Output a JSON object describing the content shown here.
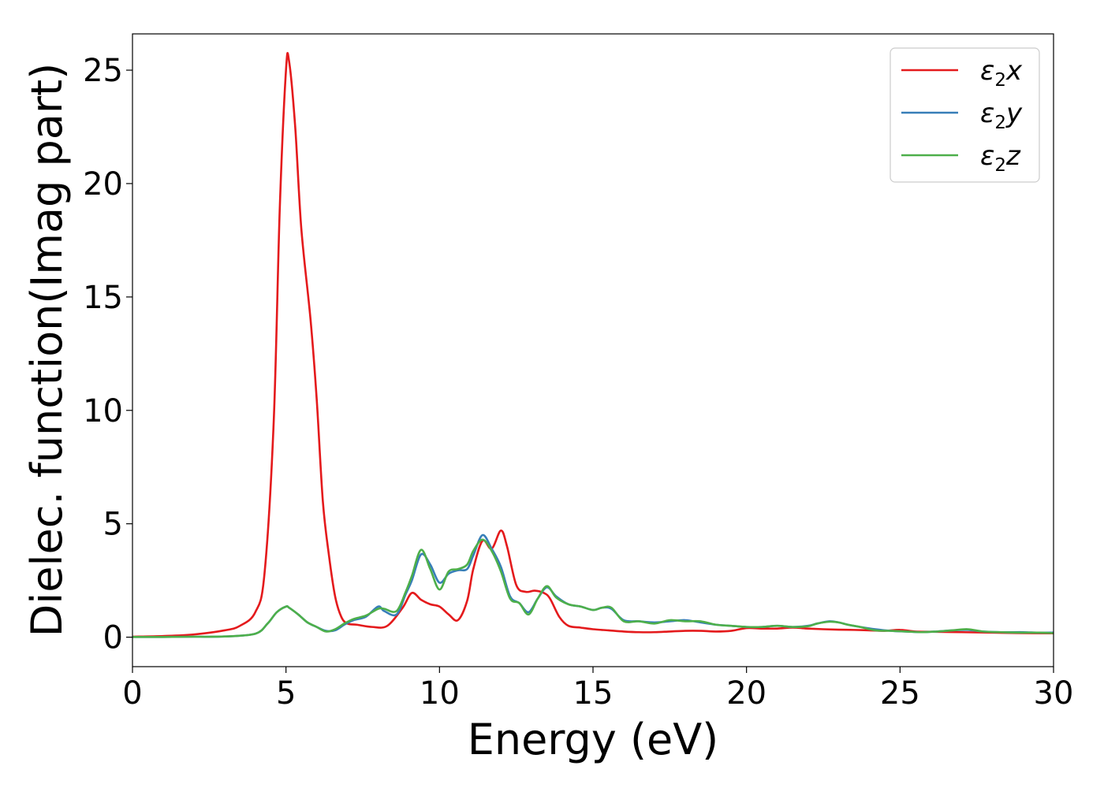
{
  "chart_data": {
    "type": "line",
    "title": "",
    "xlabel": "Energy (eV)",
    "ylabel": "Dielec. function(Imag part)",
    "xlim": [
      0,
      30
    ],
    "ylim": [
      -1.3,
      26.6
    ],
    "xticks": [
      0,
      5,
      10,
      15,
      20,
      25,
      30
    ],
    "yticks": [
      0,
      5,
      10,
      15,
      20,
      25
    ],
    "grid": false,
    "legend_position": "top-right",
    "series": [
      {
        "name": "ε₂x",
        "legend_base": "ε",
        "legend_sub": "2",
        "legend_var": "x",
        "color": "#e41a1c",
        "x": [
          0,
          1,
          2,
          3,
          3.5,
          4,
          4.3,
          4.6,
          4.8,
          5.0,
          5.1,
          5.3,
          5.5,
          5.8,
          6.0,
          6.2,
          6.4,
          6.6,
          6.8,
          7.0,
          7.3,
          7.8,
          8.3,
          8.8,
          9.1,
          9.4,
          9.7,
          10.0,
          10.3,
          10.6,
          10.9,
          11.1,
          11.4,
          11.7,
          12.0,
          12.2,
          12.5,
          12.8,
          13.1,
          13.4,
          13.6,
          13.9,
          14.2,
          14.6,
          15.0,
          15.5,
          16.0,
          16.5,
          17.0,
          17.5,
          18.0,
          18.5,
          19.0,
          19.5,
          20.0,
          20.5,
          21.0,
          21.5,
          22.0,
          22.5,
          23.0,
          23.5,
          24.0,
          24.5,
          25.0,
          25.5,
          26.0,
          27.0,
          28.0,
          29.0,
          30.0
        ],
        "values": [
          0.02,
          0.05,
          0.12,
          0.3,
          0.5,
          1.1,
          2.8,
          9.5,
          19.0,
          25.0,
          25.4,
          22.5,
          18.0,
          14.0,
          10.5,
          6.0,
          3.6,
          1.8,
          0.9,
          0.6,
          0.55,
          0.45,
          0.5,
          1.3,
          1.95,
          1.65,
          1.45,
          1.35,
          1.0,
          0.75,
          1.6,
          3.0,
          4.25,
          3.9,
          4.7,
          4.0,
          2.3,
          2.0,
          2.05,
          1.95,
          1.7,
          0.9,
          0.5,
          0.42,
          0.35,
          0.3,
          0.25,
          0.22,
          0.22,
          0.25,
          0.28,
          0.28,
          0.25,
          0.28,
          0.4,
          0.38,
          0.38,
          0.42,
          0.38,
          0.35,
          0.33,
          0.32,
          0.3,
          0.28,
          0.32,
          0.25,
          0.24,
          0.22,
          0.2,
          0.18,
          0.17
        ]
      },
      {
        "name": "ε₂y",
        "legend_base": "ε",
        "legend_sub": "2",
        "legend_var": "y",
        "color": "#377eb8",
        "x": [
          0,
          1,
          2,
          3,
          4,
          4.4,
          4.7,
          5.0,
          5.1,
          5.4,
          5.7,
          6.0,
          6.3,
          6.6,
          6.9,
          7.2,
          7.6,
          8.0,
          8.2,
          8.6,
          8.9,
          9.1,
          9.4,
          9.7,
          10.0,
          10.3,
          10.6,
          10.9,
          11.1,
          11.4,
          11.7,
          12.0,
          12.3,
          12.6,
          12.9,
          13.2,
          13.5,
          13.8,
          14.2,
          14.6,
          15.0,
          15.3,
          15.6,
          16.0,
          16.5,
          17.0,
          17.5,
          18.0,
          18.5,
          19.0,
          19.5,
          20.0,
          20.5,
          21.0,
          21.5,
          22.0,
          22.3,
          22.7,
          23.0,
          23.3,
          23.7,
          24.2,
          24.7,
          25.2,
          25.7,
          26.2,
          26.7,
          27.2,
          27.7,
          28.3,
          29.0,
          29.5,
          30.0
        ],
        "values": [
          0.01,
          0.01,
          0.02,
          0.03,
          0.15,
          0.6,
          1.1,
          1.35,
          1.3,
          1.0,
          0.65,
          0.45,
          0.28,
          0.3,
          0.55,
          0.75,
          0.9,
          1.35,
          1.15,
          1.0,
          1.9,
          2.5,
          3.65,
          3.2,
          2.4,
          2.8,
          2.95,
          3.0,
          3.6,
          4.5,
          3.9,
          3.1,
          1.8,
          1.5,
          1.1,
          1.7,
          2.2,
          1.8,
          1.45,
          1.35,
          1.2,
          1.3,
          1.25,
          0.75,
          0.7,
          0.65,
          0.7,
          0.75,
          0.65,
          0.55,
          0.5,
          0.45,
          0.45,
          0.5,
          0.45,
          0.5,
          0.6,
          0.7,
          0.65,
          0.55,
          0.45,
          0.35,
          0.28,
          0.25,
          0.22,
          0.25,
          0.3,
          0.32,
          0.25,
          0.22,
          0.22,
          0.2,
          0.2
        ]
      },
      {
        "name": "ε₂z",
        "legend_base": "ε",
        "legend_sub": "2",
        "legend_var": "z",
        "color": "#4daf4a",
        "x": [
          0,
          1,
          2,
          3,
          4,
          4.4,
          4.7,
          5.0,
          5.1,
          5.4,
          5.7,
          6.0,
          6.3,
          6.6,
          6.9,
          7.2,
          7.6,
          8.0,
          8.2,
          8.6,
          8.9,
          9.1,
          9.4,
          9.7,
          10.0,
          10.3,
          10.6,
          10.9,
          11.1,
          11.4,
          11.7,
          12.0,
          12.3,
          12.6,
          12.9,
          13.2,
          13.5,
          13.8,
          14.2,
          14.6,
          15.0,
          15.3,
          15.6,
          16.0,
          16.5,
          17.0,
          17.5,
          18.0,
          18.5,
          19.0,
          19.5,
          20.0,
          20.5,
          21.0,
          21.5,
          22.0,
          22.3,
          22.7,
          23.0,
          23.3,
          23.7,
          24.2,
          24.7,
          25.2,
          25.7,
          26.2,
          26.7,
          27.2,
          27.7,
          28.3,
          29.0,
          29.5,
          30.0
        ],
        "values": [
          0.01,
          0.01,
          0.02,
          0.03,
          0.15,
          0.6,
          1.1,
          1.35,
          1.3,
          1.0,
          0.65,
          0.45,
          0.25,
          0.35,
          0.6,
          0.8,
          0.95,
          1.25,
          1.25,
          1.15,
          2.0,
          2.7,
          3.85,
          3.0,
          2.1,
          2.9,
          3.0,
          3.2,
          3.8,
          4.3,
          3.8,
          2.9,
          1.7,
          1.5,
          1.0,
          1.7,
          2.25,
          1.75,
          1.45,
          1.35,
          1.2,
          1.3,
          1.3,
          0.7,
          0.7,
          0.6,
          0.75,
          0.7,
          0.7,
          0.55,
          0.5,
          0.45,
          0.45,
          0.5,
          0.45,
          0.48,
          0.6,
          0.68,
          0.65,
          0.55,
          0.45,
          0.3,
          0.28,
          0.25,
          0.22,
          0.25,
          0.3,
          0.35,
          0.25,
          0.22,
          0.2,
          0.2,
          0.18
        ]
      }
    ]
  }
}
